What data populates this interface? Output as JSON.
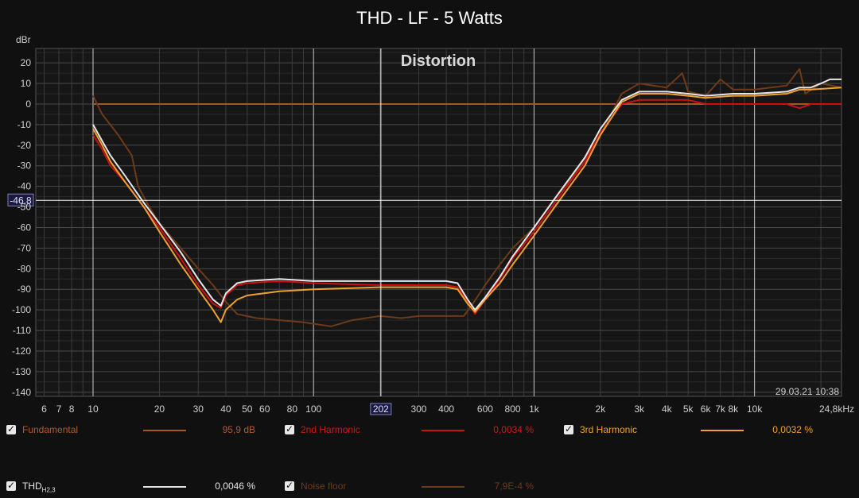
{
  "chart_data": {
    "type": "line",
    "title": "THD - LF - 5 Watts",
    "annotation": "Distortion",
    "ylabel": "dBr",
    "xscale": "log",
    "xlim": [
      5.5,
      24800
    ],
    "ylim": [
      -142,
      27
    ],
    "grid": true,
    "yticks": [
      20,
      10,
      0,
      -10,
      -20,
      -30,
      -40,
      -50,
      -60,
      -70,
      -80,
      -90,
      -100,
      -110,
      -120,
      -130,
      -140
    ],
    "xticks": [
      {
        "v": 6,
        "label": "6"
      },
      {
        "v": 7,
        "label": "7"
      },
      {
        "v": 8,
        "label": "8"
      },
      {
        "v": 10,
        "label": "10"
      },
      {
        "v": 20,
        "label": "20"
      },
      {
        "v": 30,
        "label": "30"
      },
      {
        "v": 40,
        "label": "40"
      },
      {
        "v": 50,
        "label": "50"
      },
      {
        "v": 60,
        "label": "60"
      },
      {
        "v": 80,
        "label": "80"
      },
      {
        "v": 100,
        "label": "100"
      },
      {
        "v": 300,
        "label": "300"
      },
      {
        "v": 400,
        "label": "400"
      },
      {
        "v": 600,
        "label": "600"
      },
      {
        "v": 800,
        "label": "800"
      },
      {
        "v": 1000,
        "label": "1k"
      },
      {
        "v": 2000,
        "label": "2k"
      },
      {
        "v": 3000,
        "label": "3k"
      },
      {
        "v": 4000,
        "label": "4k"
      },
      {
        "v": 5000,
        "label": "5k"
      },
      {
        "v": 6000,
        "label": "6k"
      },
      {
        "v": 7000,
        "label": "7k"
      },
      {
        "v": 8000,
        "label": "8k"
      },
      {
        "v": 10000,
        "label": "10k"
      },
      {
        "v": 24800,
        "label": "24,8kHz"
      }
    ],
    "cursor": {
      "x": 202,
      "x_label": "202",
      "y": -46.8,
      "y_label": "-46,8"
    },
    "timestamp": "29.03.21 10:38",
    "series": [
      {
        "name": "Fundamental",
        "color": "#a0582a",
        "points": [
          [
            10,
            0
          ],
          [
            24800,
            0
          ]
        ]
      },
      {
        "name": "Noise floor",
        "color": "#6e3a18",
        "points": [
          [
            10,
            4
          ],
          [
            11,
            -5
          ],
          [
            13,
            -15
          ],
          [
            15,
            -25
          ],
          [
            16,
            -40
          ],
          [
            18,
            -50
          ],
          [
            20,
            -58
          ],
          [
            25,
            -70
          ],
          [
            30,
            -80
          ],
          [
            35,
            -88
          ],
          [
            40,
            -96
          ],
          [
            45,
            -102
          ],
          [
            55,
            -104
          ],
          [
            70,
            -105
          ],
          [
            90,
            -106
          ],
          [
            120,
            -108
          ],
          [
            150,
            -105
          ],
          [
            200,
            -103
          ],
          [
            250,
            -104
          ],
          [
            300,
            -103
          ],
          [
            400,
            -103
          ],
          [
            480,
            -103
          ],
          [
            520,
            -98
          ],
          [
            600,
            -88
          ],
          [
            700,
            -78
          ],
          [
            800,
            -70
          ],
          [
            1000,
            -60
          ],
          [
            1200,
            -48
          ],
          [
            1500,
            -35
          ],
          [
            2000,
            -15
          ],
          [
            2500,
            5
          ],
          [
            3000,
            10
          ],
          [
            4000,
            8
          ],
          [
            4700,
            15
          ],
          [
            5000,
            6
          ],
          [
            6000,
            4
          ],
          [
            7000,
            12
          ],
          [
            8000,
            7
          ],
          [
            10000,
            7
          ],
          [
            14000,
            9
          ],
          [
            16000,
            17
          ],
          [
            17000,
            5
          ],
          [
            20000,
            10
          ],
          [
            24800,
            8
          ]
        ]
      },
      {
        "name": "2nd Harmonic",
        "color": "#cc1010",
        "points": [
          [
            10,
            -15
          ],
          [
            11,
            -22
          ],
          [
            12,
            -30
          ],
          [
            14,
            -38
          ],
          [
            17,
            -50
          ],
          [
            20,
            -60
          ],
          [
            25,
            -75
          ],
          [
            30,
            -88
          ],
          [
            35,
            -97
          ],
          [
            38,
            -99
          ],
          [
            40,
            -93
          ],
          [
            45,
            -88
          ],
          [
            50,
            -87
          ],
          [
            70,
            -86
          ],
          [
            100,
            -87
          ],
          [
            200,
            -88
          ],
          [
            300,
            -88
          ],
          [
            400,
            -88
          ],
          [
            450,
            -89
          ],
          [
            500,
            -96
          ],
          [
            540,
            -102
          ],
          [
            600,
            -95
          ],
          [
            700,
            -85
          ],
          [
            800,
            -75
          ],
          [
            1000,
            -62
          ],
          [
            1300,
            -45
          ],
          [
            1700,
            -28
          ],
          [
            2000,
            -14
          ],
          [
            2500,
            0
          ],
          [
            3000,
            2
          ],
          [
            4000,
            2
          ],
          [
            5000,
            2
          ],
          [
            6000,
            0
          ],
          [
            8000,
            0
          ],
          [
            10000,
            0
          ],
          [
            14000,
            0
          ],
          [
            16000,
            -2
          ],
          [
            18000,
            0
          ],
          [
            24800,
            0
          ]
        ]
      },
      {
        "name": "3rd Harmonic",
        "color": "#f0a030",
        "points": [
          [
            10,
            -12
          ],
          [
            11,
            -20
          ],
          [
            12,
            -28
          ],
          [
            14,
            -38
          ],
          [
            17,
            -50
          ],
          [
            20,
            -62
          ],
          [
            25,
            -78
          ],
          [
            30,
            -90
          ],
          [
            35,
            -100
          ],
          [
            38,
            -106
          ],
          [
            40,
            -100
          ],
          [
            45,
            -95
          ],
          [
            50,
            -93
          ],
          [
            70,
            -91
          ],
          [
            100,
            -90
          ],
          [
            200,
            -89
          ],
          [
            300,
            -89
          ],
          [
            400,
            -89
          ],
          [
            450,
            -90
          ],
          [
            500,
            -97
          ],
          [
            540,
            -101
          ],
          [
            600,
            -95
          ],
          [
            700,
            -87
          ],
          [
            800,
            -78
          ],
          [
            1000,
            -64
          ],
          [
            1300,
            -47
          ],
          [
            1700,
            -30
          ],
          [
            2000,
            -15
          ],
          [
            2500,
            1
          ],
          [
            3000,
            5
          ],
          [
            4000,
            5
          ],
          [
            5000,
            4
          ],
          [
            6000,
            3
          ],
          [
            8000,
            4
          ],
          [
            10000,
            4
          ],
          [
            14000,
            5
          ],
          [
            16000,
            7
          ],
          [
            18000,
            7
          ],
          [
            24800,
            8
          ]
        ]
      },
      {
        "name": "THDH2,3",
        "color": "#e6e6e6",
        "points": [
          [
            10,
            -10
          ],
          [
            11,
            -18
          ],
          [
            12,
            -25
          ],
          [
            14,
            -35
          ],
          [
            17,
            -48
          ],
          [
            20,
            -58
          ],
          [
            25,
            -72
          ],
          [
            30,
            -85
          ],
          [
            35,
            -95
          ],
          [
            38,
            -98
          ],
          [
            40,
            -92
          ],
          [
            45,
            -87
          ],
          [
            50,
            -86
          ],
          [
            70,
            -85
          ],
          [
            100,
            -86
          ],
          [
            200,
            -86
          ],
          [
            300,
            -86
          ],
          [
            400,
            -86
          ],
          [
            450,
            -87
          ],
          [
            500,
            -95
          ],
          [
            540,
            -100
          ],
          [
            600,
            -94
          ],
          [
            700,
            -84
          ],
          [
            800,
            -74
          ],
          [
            1000,
            -60
          ],
          [
            1300,
            -43
          ],
          [
            1700,
            -26
          ],
          [
            2000,
            -12
          ],
          [
            2500,
            2
          ],
          [
            3000,
            6
          ],
          [
            4000,
            6
          ],
          [
            5000,
            5
          ],
          [
            6000,
            4
          ],
          [
            8000,
            5
          ],
          [
            10000,
            5
          ],
          [
            14000,
            6
          ],
          [
            16000,
            8
          ],
          [
            18000,
            8
          ],
          [
            20000,
            10
          ],
          [
            22000,
            12
          ],
          [
            24800,
            12
          ]
        ]
      }
    ]
  },
  "legend": [
    {
      "name": "Fundamental",
      "value": "95,9 dB",
      "color": "#a0582a",
      "name_color": "#b35a2c",
      "value_color": "#b35a2c"
    },
    {
      "name": "2nd Harmonic",
      "value": "0,0034 %",
      "color": "#cc1010",
      "name_color": "#cc1a1a",
      "value_color": "#cc1a1a"
    },
    {
      "name": "3rd Harmonic",
      "value": "0,0032 %",
      "color": "#f0a030",
      "name_color": "#f0a030",
      "value_color": "#f0a030"
    },
    {
      "name": "THD",
      "name_sub": "H2,3",
      "value": "0,0046 %",
      "color": "#e6e6e6",
      "name_color": "#e6e6e6",
      "value_color": "#e6e6e6"
    },
    {
      "name": "Noise floor",
      "value": "7,9E-4 %",
      "color": "#6e3a18",
      "name_color": "#6e3a18",
      "value_color": "#6e3a18"
    }
  ]
}
